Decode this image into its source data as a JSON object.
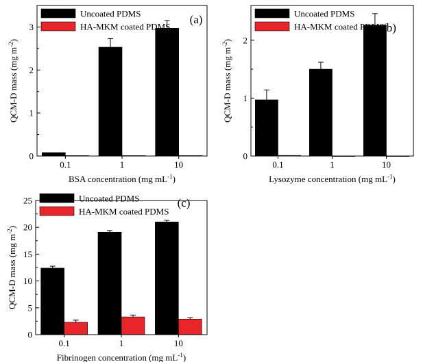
{
  "colors": {
    "uncoated": "#000000",
    "coated": "#e8262a"
  },
  "chart_data": [
    {
      "type": "bar",
      "panel": "(a)",
      "categories": [
        "0.1",
        "1",
        "10"
      ],
      "xlabel": "BSA concentration (mg mL",
      "xlabel_sup": "-1",
      "ylabel": "QCM-D mass (mg m",
      "ylabel_sup": "-2",
      "ylim": [
        0,
        3.5
      ],
      "yticks": [
        0,
        1,
        2,
        3
      ],
      "legend_placement": "top-left",
      "series": [
        {
          "name": "Uncoated PDMS",
          "values": [
            0.08,
            2.53,
            2.97
          ],
          "errors": [
            0,
            0.2,
            0.18
          ]
        },
        {
          "name": "HA-MKM coated PDMS",
          "values": [
            0.01,
            0.01,
            0.01
          ],
          "errors": [
            0,
            0,
            0
          ]
        }
      ]
    },
    {
      "type": "bar",
      "panel": "(b)",
      "categories": [
        "0.1",
        "1",
        "10"
      ],
      "xlabel": "Lysozyme concentration (mg mL",
      "xlabel_sup": "-1",
      "ylabel": "QCM-D mass (mg m",
      "ylabel_sup": "-2",
      "ylim": [
        0,
        2.6
      ],
      "yticks": [
        0,
        1,
        2
      ],
      "legend_placement": "top-left",
      "series": [
        {
          "name": "Uncoated PDMS",
          "values": [
            0.97,
            1.5,
            2.26
          ],
          "errors": [
            0.17,
            0.12,
            0.2
          ]
        },
        {
          "name": "HA-MKM coated PDMS",
          "values": [
            0.01,
            0.0,
            0.0
          ],
          "errors": [
            0,
            0,
            0
          ]
        }
      ]
    },
    {
      "type": "bar",
      "panel": "(c)",
      "categories": [
        "0.1",
        "1",
        "10"
      ],
      "xlabel": "Fibrinogen concentration (mg mL",
      "xlabel_sup": "-1",
      "ylabel": "QCM-D mass (mg m",
      "ylabel_sup": "-2",
      "ylim": [
        0,
        25
      ],
      "yticks": [
        0,
        5,
        10,
        15,
        20,
        25
      ],
      "legend_placement": "top-left",
      "series": [
        {
          "name": "Uncoated PDMS",
          "values": [
            12.4,
            19.1,
            21.0
          ],
          "errors": [
            0.35,
            0.3,
            0.3
          ]
        },
        {
          "name": "HA-MKM coated PDMS",
          "values": [
            2.3,
            3.3,
            2.9
          ],
          "errors": [
            0.4,
            0.35,
            0.25
          ]
        }
      ]
    }
  ]
}
